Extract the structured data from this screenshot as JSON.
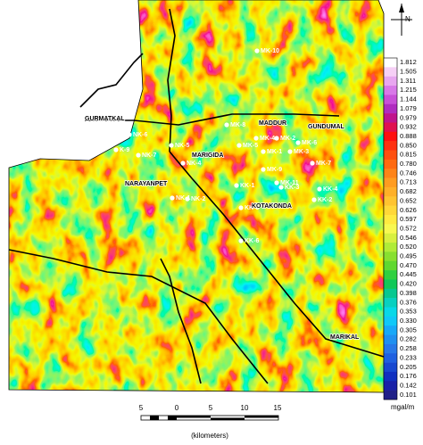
{
  "map": {
    "places": [
      "GURMATKAL",
      "MADDUR",
      "GUNDUMAL",
      "MARIGIDA",
      "NARAYANPET",
      "KOTAKONDA",
      "MARIKAL"
    ],
    "stations": [
      "MK-10",
      "MK-8",
      "MK-5",
      "MK-4",
      "MK-2",
      "MK-1",
      "MK-3",
      "MK-6",
      "MK-7",
      "MK-9",
      "MK-11",
      "NK-6",
      "K-9",
      "NK-7",
      "NK-5",
      "NK-4",
      "NK-1",
      "NK-2",
      "KK-1",
      "KK-3",
      "KK-4",
      "KK-2",
      "KK-5",
      "KK-6"
    ],
    "north_label": "N"
  },
  "legend": {
    "title": "mgal/m",
    "labels": [
      "1.812",
      "1.505",
      "1.311",
      "1.215",
      "1.144",
      "1.079",
      "0.979",
      "0.932",
      "0.888",
      "0.850",
      "0.815",
      "0.780",
      "0.746",
      "0.713",
      "0.682",
      "0.652",
      "0.626",
      "0.597",
      "0.572",
      "0.546",
      "0.520",
      "0.495",
      "0.470",
      "0.445",
      "0.420",
      "0.398",
      "0.376",
      "0.353",
      "0.330",
      "0.305",
      "0.282",
      "0.258",
      "0.233",
      "0.205",
      "0.176",
      "0.142",
      "0.101"
    ]
  },
  "scale_bar": {
    "labels": [
      "5",
      "0",
      "5",
      "10",
      "15"
    ],
    "unit": "(kilometers)"
  }
}
